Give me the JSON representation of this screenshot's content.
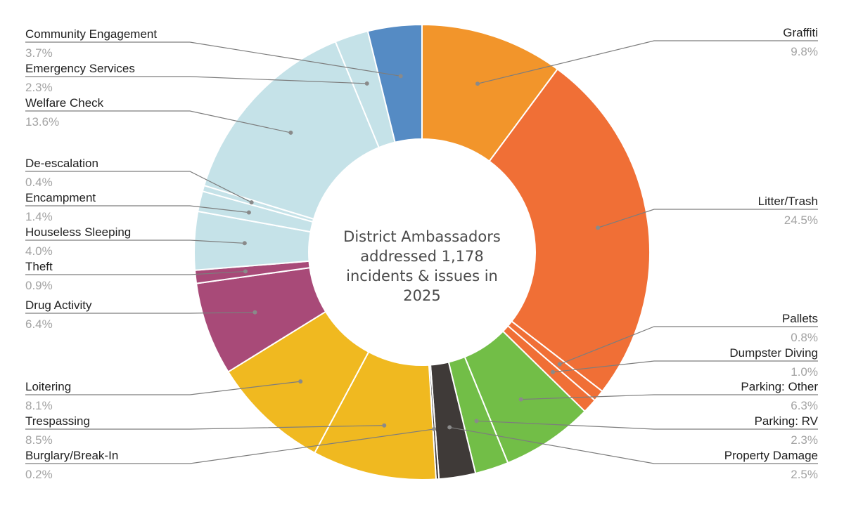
{
  "chart_data": {
    "type": "pie",
    "variant": "donut",
    "center_text": [
      "District Ambassadors",
      "addressed 1,178",
      "incidents & issues in",
      "2025"
    ],
    "slices": [
      {
        "label": "Graffiti",
        "percent_text": "9.8%",
        "value": 9.8,
        "color": "#F2952B"
      },
      {
        "label": "Litter/Trash",
        "percent_text": "24.5%",
        "value": 24.5,
        "color": "#F06F36"
      },
      {
        "label": "Pallets",
        "percent_text": "0.8%",
        "value": 0.8,
        "color": "#F06F36"
      },
      {
        "label": "Dumpster Diving",
        "percent_text": "1.0%",
        "value": 1.0,
        "color": "#F06F36"
      },
      {
        "label": "Parking: Other",
        "percent_text": "6.3%",
        "value": 6.3,
        "color": "#72BE47"
      },
      {
        "label": "Parking: RV",
        "percent_text": "2.3%",
        "value": 2.3,
        "color": "#72BE47"
      },
      {
        "label": "Property Damage",
        "percent_text": "2.5%",
        "value": 2.5,
        "color": "#3F3A38"
      },
      {
        "label": "Burglary/Break-In",
        "percent_text": "0.2%",
        "value": 0.2,
        "color": "#3F3A38"
      },
      {
        "label": "Trespassing",
        "percent_text": "8.5%",
        "value": 8.5,
        "color": "#F0B920"
      },
      {
        "label": "Loitering",
        "percent_text": "8.1%",
        "value": 8.1,
        "color": "#F0B920"
      },
      {
        "label": "Drug Activity",
        "percent_text": "6.4%",
        "value": 6.4,
        "color": "#A84A78"
      },
      {
        "label": "Theft",
        "percent_text": "0.9%",
        "value": 0.9,
        "color": "#A84A78"
      },
      {
        "label": "Houseless Sleeping",
        "percent_text": "4.0%",
        "value": 4.0,
        "color": "#C5E2E8"
      },
      {
        "label": "Encampment",
        "percent_text": "1.4%",
        "value": 1.4,
        "color": "#C5E2E8"
      },
      {
        "label": "De-escalation",
        "percent_text": "0.4%",
        "value": 0.4,
        "color": "#C5E2E8"
      },
      {
        "label": "Welfare Check",
        "percent_text": "13.6%",
        "value": 13.6,
        "color": "#C5E2E8"
      },
      {
        "label": "Emergency Services",
        "percent_text": "2.3%",
        "value": 2.3,
        "color": "#C5E2E8"
      },
      {
        "label": "Community Engagement",
        "percent_text": "3.7%",
        "value": 3.7,
        "color": "#558BC4"
      }
    ]
  }
}
